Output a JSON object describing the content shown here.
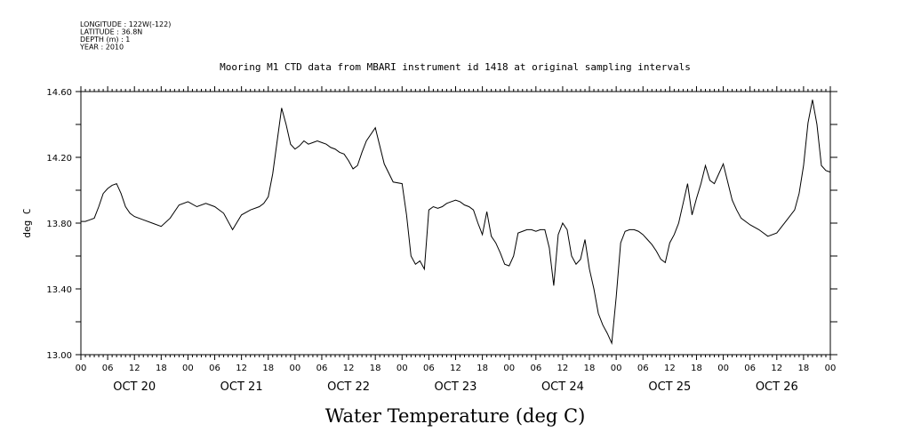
{
  "header": {
    "lines": [
      "LONGITUDE : 122W(-122)",
      "LATITUDE : 36.8N",
      "DEPTH (m) : 1",
      "YEAR : 2010"
    ]
  },
  "chart_data": {
    "type": "line",
    "title": "Mooring M1 CTD data from MBARI instrument id 1418 at original sampling intervals",
    "xlabel": "Water Temperature (deg C)",
    "ylabel": "deg C",
    "ylim": [
      13.0,
      14.6
    ],
    "yticks": [
      13.0,
      13.4,
      13.8,
      14.2,
      14.6
    ],
    "ytick_labels": [
      "13.00",
      "13.40",
      "13.80",
      "14.20",
      "14.60"
    ],
    "xlim": [
      0,
      168
    ],
    "x_units": "hours since OCT 20 00:00",
    "hour_tick_labels": [
      "00",
      "06",
      "12",
      "18",
      "00",
      "06",
      "12",
      "18",
      "00",
      "06",
      "12",
      "18",
      "00",
      "06",
      "12",
      "18",
      "00",
      "06",
      "12",
      "18",
      "00",
      "06",
      "12",
      "18",
      "00",
      "06",
      "12",
      "18",
      "00"
    ],
    "day_labels": [
      "OCT 20",
      "OCT 21",
      "OCT 22",
      "OCT 23",
      "OCT 24",
      "OCT 25",
      "OCT 26"
    ],
    "grid": false,
    "series": [
      {
        "x": [
          0,
          1,
          2,
          3,
          4,
          5,
          6,
          7,
          8,
          9,
          10,
          11,
          12,
          14,
          16,
          18,
          20,
          22,
          24,
          26,
          28,
          30,
          32,
          34,
          36,
          38,
          40,
          41,
          42,
          43,
          44,
          45,
          46,
          47,
          48,
          49,
          50,
          51,
          52,
          53,
          54,
          55,
          56,
          57,
          58,
          59,
          60,
          61,
          62,
          63,
          64,
          66,
          68,
          70,
          72,
          73,
          74,
          75,
          76,
          77,
          78,
          79,
          80,
          81,
          82,
          83,
          84,
          85,
          86,
          87,
          88,
          89,
          90,
          91,
          92,
          93,
          94,
          95,
          96,
          97,
          98,
          99,
          100,
          101,
          102,
          103,
          104,
          105,
          106,
          107,
          108,
          109,
          110,
          111,
          112,
          113,
          114,
          115,
          116,
          117,
          118,
          119,
          120,
          121,
          122,
          123,
          124,
          125,
          126,
          127,
          128,
          129,
          130,
          131,
          132,
          133,
          134,
          135,
          136,
          137,
          138,
          139,
          140,
          141,
          142,
          143,
          144,
          145,
          146,
          147,
          148,
          150,
          152,
          154,
          156,
          158,
          160,
          161,
          162,
          163,
          164,
          165,
          166,
          167,
          168
        ],
        "y": [
          13.81,
          13.81,
          13.82,
          13.83,
          13.9,
          13.98,
          14.01,
          14.03,
          14.04,
          13.98,
          13.9,
          13.86,
          13.84,
          13.82,
          13.8,
          13.78,
          13.83,
          13.91,
          13.93,
          13.9,
          13.92,
          13.9,
          13.86,
          13.76,
          13.85,
          13.88,
          13.9,
          13.92,
          13.96,
          14.1,
          14.3,
          14.5,
          14.4,
          14.28,
          14.25,
          14.27,
          14.3,
          14.28,
          14.29,
          14.3,
          14.29,
          14.28,
          14.26,
          14.25,
          14.23,
          14.22,
          14.18,
          14.13,
          14.15,
          14.23,
          14.3,
          14.38,
          14.16,
          14.05,
          14.04,
          13.85,
          13.6,
          13.55,
          13.57,
          13.52,
          13.88,
          13.9,
          13.89,
          13.9,
          13.92,
          13.93,
          13.94,
          13.93,
          13.91,
          13.9,
          13.88,
          13.8,
          13.73,
          13.87,
          13.72,
          13.68,
          13.62,
          13.55,
          13.54,
          13.6,
          13.74,
          13.75,
          13.76,
          13.76,
          13.75,
          13.76,
          13.76,
          13.65,
          13.42,
          13.73,
          13.8,
          13.76,
          13.6,
          13.55,
          13.58,
          13.7,
          13.52,
          13.4,
          13.25,
          13.18,
          13.13,
          13.07,
          13.35,
          13.68,
          13.75,
          13.76,
          13.76,
          13.75,
          13.73,
          13.7,
          13.67,
          13.63,
          13.58,
          13.56,
          13.68,
          13.73,
          13.8,
          13.92,
          14.04,
          13.85,
          13.95,
          14.04,
          14.15,
          14.06,
          14.04,
          14.1,
          14.16,
          14.05,
          13.94,
          13.88,
          13.83,
          13.79,
          13.76,
          13.72,
          13.74,
          13.81,
          13.88,
          13.98,
          14.15,
          14.41,
          14.55,
          14.4,
          14.15,
          14.12,
          14.11
        ]
      }
    ]
  }
}
